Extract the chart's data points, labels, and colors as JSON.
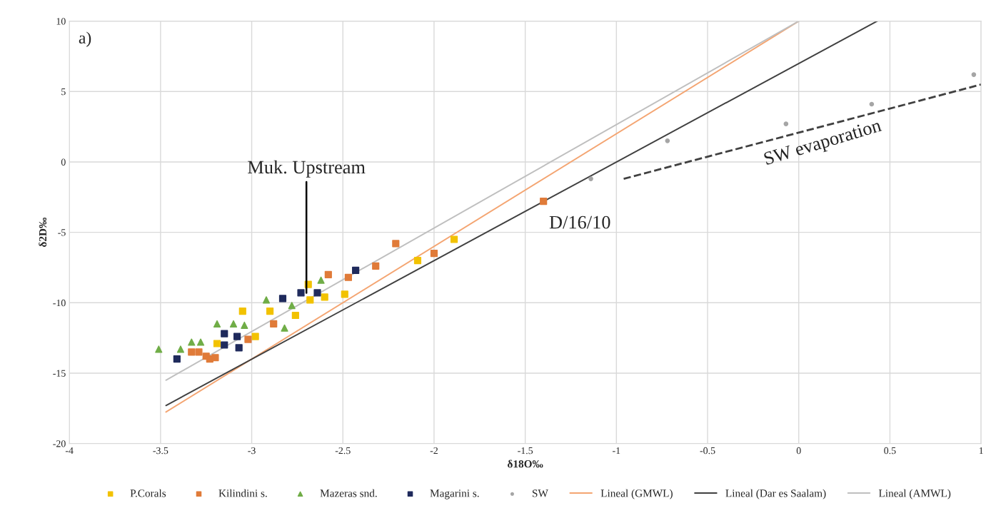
{
  "chart_data": {
    "type": "scatter",
    "xlabel": "δ18O‰",
    "ylabel": "δ2D‰",
    "xlim": [
      -4,
      1
    ],
    "xticks": [
      -4,
      -3.5,
      -3,
      -2.5,
      -2,
      -1.5,
      -1,
      -0.5,
      0,
      0.5,
      1
    ],
    "ylim": [
      -20,
      10
    ],
    "yticks": [
      -20,
      -15,
      -10,
      -5,
      0,
      5,
      10
    ],
    "grid": true,
    "legend": "bottom",
    "series": [
      {
        "name": "P.Corals",
        "color": "#f2c200",
        "marker": "square",
        "x": [
          -3.05,
          -2.9,
          -2.98,
          -3.19,
          -2.69,
          -2.68,
          -2.76,
          -2.6,
          -2.49,
          -2.09,
          -1.89
        ],
        "values": [
          -10.6,
          -10.6,
          -12.4,
          -12.9,
          -8.7,
          -9.8,
          -10.9,
          -9.6,
          -9.4,
          -7.0,
          -5.5
        ]
      },
      {
        "name": "Kilindini s.",
        "color": "#e07b39",
        "marker": "square",
        "x": [
          -3.33,
          -3.29,
          -3.25,
          -3.23,
          -3.2,
          -2.88,
          -2.58,
          -2.47,
          -2.32,
          -3.02,
          -2.21,
          -2.0,
          -1.4
        ],
        "values": [
          -13.5,
          -13.5,
          -13.8,
          -14.0,
          -13.9,
          -11.5,
          -8.0,
          -8.2,
          -7.4,
          -12.6,
          -5.8,
          -6.5,
          -2.8
        ]
      },
      {
        "name": "Mazeras snd.",
        "color": "#70ad47",
        "marker": "triangle",
        "x": [
          -3.51,
          -3.39,
          -3.33,
          -3.28,
          -3.19,
          -3.1,
          -3.04,
          -2.92,
          -2.82,
          -2.78,
          -2.62
        ],
        "values": [
          -13.3,
          -13.3,
          -12.8,
          -12.8,
          -11.5,
          -11.5,
          -11.6,
          -9.8,
          -11.8,
          -10.2,
          -8.4
        ]
      },
      {
        "name": "Magarini s.",
        "color": "#1f2a5c",
        "marker": "square",
        "x": [
          -3.41,
          -3.15,
          -3.15,
          -3.08,
          -3.07,
          -2.83,
          -2.73,
          -2.64,
          -2.43
        ],
        "values": [
          -14.0,
          -12.2,
          -13.0,
          -12.4,
          -13.2,
          -9.7,
          -9.3,
          -9.3,
          -7.7
        ]
      },
      {
        "name": "SW",
        "color": "#a5a5a5",
        "marker": "circle",
        "x": [
          -1.14,
          -0.72,
          -0.07,
          0.4,
          0.96
        ],
        "values": [
          -1.2,
          1.5,
          2.7,
          4.1,
          6.2
        ]
      },
      {
        "name": "Lineal (GMWL)",
        "type": "line",
        "color": "#f4a572",
        "line_style": "solid",
        "marker": "none",
        "x": [
          -3.47,
          0
        ],
        "values": [
          -17.76,
          10
        ]
      },
      {
        "name": "Lineal (Dar es Saalam)",
        "type": "line",
        "color": "#404040",
        "line_style": "solid",
        "marker": "none",
        "x": [
          -3.47,
          0.43
        ],
        "values": [
          -17.3,
          10
        ]
      },
      {
        "name": "Lineal (AMWL)",
        "type": "line",
        "color": "#bfbfbf",
        "line_style": "solid",
        "marker": "none",
        "x": [
          -3.47,
          0
        ],
        "values": [
          -15.5,
          10
        ]
      },
      {
        "name": "SW evaporation",
        "type": "line",
        "color": "#404040",
        "line_style": "dashed",
        "marker": "none",
        "x": [
          -0.96,
          1
        ],
        "values": [
          -1.2,
          5.5
        ]
      }
    ],
    "annotations": [
      "a)",
      {
        "text": "Muk. Upstream",
        "x": -2.7,
        "y": -9.3
      },
      {
        "text": "D/16/10",
        "x": -1.4,
        "y": -2.8
      }
    ]
  }
}
